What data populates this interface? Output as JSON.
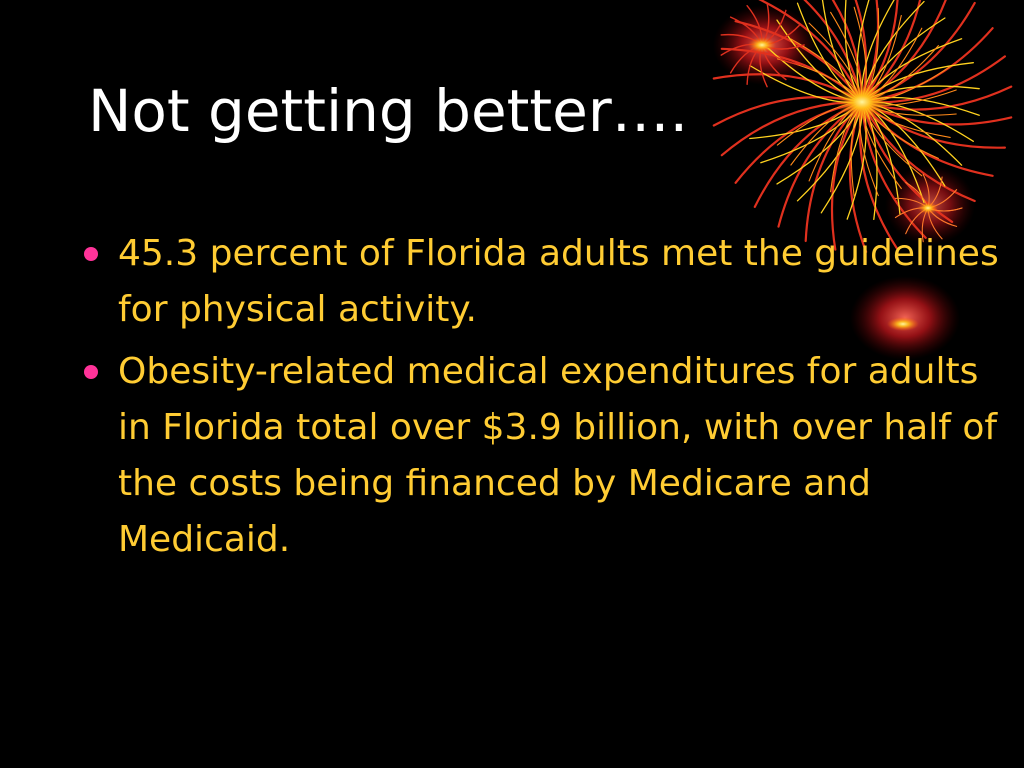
{
  "slide": {
    "title": "Not getting better….",
    "bullets": [
      "45.3 percent of Florida adults met the guidelines for physical activity.",
      "Obesity-related medical expenditures for adults in Florida total over $3.9 billion, with over half of the costs being financed by Medicare and Medicaid."
    ]
  },
  "colors": {
    "background": "#000000",
    "title": "#ffffff",
    "body_text": "#ffcc33",
    "bullet": "#ff3399",
    "firework_primary": "#e0301e",
    "firework_glow": "#ffd21f"
  },
  "decoration": {
    "icon": "fireworks-icon"
  }
}
